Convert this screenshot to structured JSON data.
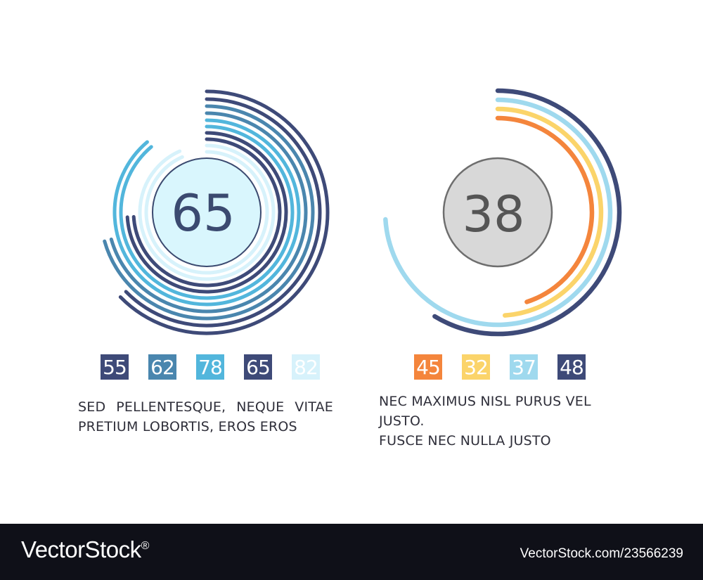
{
  "colors": {
    "background": "#ffffff",
    "footer": "#0f1018",
    "text": "#2f2f3a"
  },
  "chart_data": [
    {
      "type": "radial-bar",
      "center_value": "65",
      "center_fill": "#d9f6fd",
      "center_stroke": "#3b4a70",
      "center_text_color": "#3b4a70",
      "series": [
        {
          "value": 55,
          "label": "55",
          "color": "#3e4a78"
        },
        {
          "value": 62,
          "label": "62",
          "color": "#4a86ae"
        },
        {
          "value": 78,
          "label": "78",
          "color": "#52b6dc"
        },
        {
          "value": 65,
          "label": "65",
          "color": "#3e4a78"
        },
        {
          "value": 82,
          "label": "82",
          "color": "#d7f2fb"
        }
      ],
      "caption_line1": "SED PELLENTESQUE, NEQUE VITAE",
      "caption_line2": "PRETIUM LOBORTIS, EROS EROS"
    },
    {
      "type": "radial-bar",
      "center_value": "38",
      "center_fill": "#d8d8d8",
      "center_stroke": "#6e6e6e",
      "center_text_color": "#555555",
      "series": [
        {
          "value": 45,
          "label": "45",
          "color": "#f4853c"
        },
        {
          "value": 32,
          "label": "32",
          "color": "#fbd46a"
        },
        {
          "value": 37,
          "label": "37",
          "color": "#9fd9ee"
        },
        {
          "value": 48,
          "label": "48",
          "color": "#3e4a78"
        }
      ],
      "caption_line1": "NEC MAXIMUS NISL PURUS VEL JUSTO.",
      "caption_line2": "FUSCE NEC NULLA JUSTO"
    }
  ],
  "watermark": {
    "brand": "VectorStock",
    "registered": "®",
    "url": "VectorStock.com/23566239"
  }
}
